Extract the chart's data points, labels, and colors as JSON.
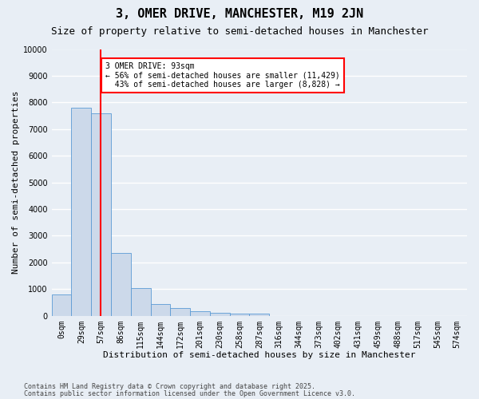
{
  "title": "3, OMER DRIVE, MANCHESTER, M19 2JN",
  "subtitle": "Size of property relative to semi-detached houses in Manchester",
  "xlabel": "Distribution of semi-detached houses by size in Manchester",
  "ylabel": "Number of semi-detached properties",
  "footer1": "Contains HM Land Registry data © Crown copyright and database right 2025.",
  "footer2": "Contains public sector information licensed under the Open Government Licence v3.0.",
  "bar_labels": [
    "0sqm",
    "29sqm",
    "57sqm",
    "86sqm",
    "115sqm",
    "144sqm",
    "172sqm",
    "201sqm",
    "230sqm",
    "258sqm",
    "287sqm",
    "316sqm",
    "344sqm",
    "373sqm",
    "402sqm",
    "431sqm",
    "459sqm",
    "488sqm",
    "517sqm",
    "545sqm",
    "574sqm"
  ],
  "bar_values": [
    800,
    7800,
    7600,
    2350,
    1050,
    450,
    280,
    175,
    125,
    75,
    80,
    0,
    0,
    0,
    0,
    0,
    0,
    0,
    0,
    0,
    0
  ],
  "bar_color": "#ccd9ea",
  "bar_edge_color": "#5b9bd5",
  "vline_x": 2.46,
  "vline_color": "red",
  "annotation_text": "3 OMER DRIVE: 93sqm\n← 56% of semi-detached houses are smaller (11,429)\n  43% of semi-detached houses are larger (8,828) →",
  "annotation_box_color": "white",
  "annotation_box_edge": "red",
  "ylim": [
    0,
    10000
  ],
  "yticks": [
    0,
    1000,
    2000,
    3000,
    4000,
    5000,
    6000,
    7000,
    8000,
    9000,
    10000
  ],
  "bg_color": "#e8eef5",
  "plot_bg_color": "#e8eef5",
  "grid_color": "#ffffff",
  "title_fontsize": 11,
  "subtitle_fontsize": 9,
  "axis_label_fontsize": 8,
  "tick_fontsize": 7,
  "annotation_fontsize": 7,
  "footer_fontsize": 6
}
